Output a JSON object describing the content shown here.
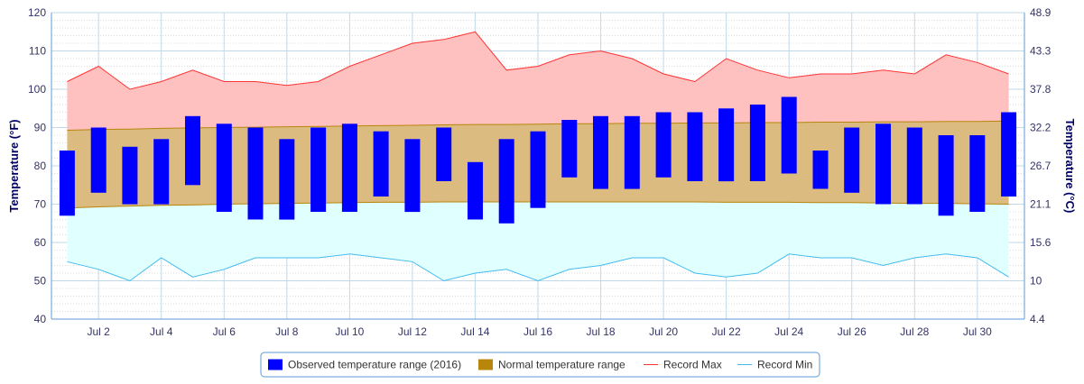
{
  "chart_data": {
    "type": "bar",
    "title": "",
    "ylabel": "Temperature (°F)",
    "y2label": "Temperature (°C)",
    "ylim": [
      40,
      120
    ],
    "yticks": [
      40,
      50,
      60,
      70,
      80,
      90,
      100,
      110,
      120
    ],
    "y2ticks": [
      "4.4",
      "10",
      "15.6",
      "21.1",
      "26.7",
      "32.2",
      "37.8",
      "43.3",
      "48.9"
    ],
    "days": [
      1,
      2,
      3,
      4,
      5,
      6,
      7,
      8,
      9,
      10,
      11,
      12,
      13,
      14,
      15,
      16,
      17,
      18,
      19,
      20,
      21,
      22,
      23,
      24,
      25,
      26,
      27,
      28,
      29,
      30,
      31
    ],
    "xtick_labels": [
      {
        "day": 2,
        "label": "Jul 2"
      },
      {
        "day": 4,
        "label": "Jul 4"
      },
      {
        "day": 6,
        "label": "Jul 6"
      },
      {
        "day": 8,
        "label": "Jul 8"
      },
      {
        "day": 10,
        "label": "Jul 10"
      },
      {
        "day": 12,
        "label": "Jul 12"
      },
      {
        "day": 14,
        "label": "Jul 14"
      },
      {
        "day": 16,
        "label": "Jul 16"
      },
      {
        "day": 18,
        "label": "Jul 18"
      },
      {
        "day": 20,
        "label": "Jul 20"
      },
      {
        "day": 22,
        "label": "Jul 22"
      },
      {
        "day": 24,
        "label": "Jul 24"
      },
      {
        "day": 26,
        "label": "Jul 26"
      },
      {
        "day": 28,
        "label": "Jul 28"
      },
      {
        "day": 30,
        "label": "Jul 30"
      }
    ],
    "series": [
      {
        "name": "Observed temperature range (2016)",
        "kind": "columnrange",
        "color": "#0000ff",
        "low": [
          67,
          73,
          70,
          70,
          75,
          68,
          66,
          66,
          68,
          68,
          72,
          68,
          76,
          66,
          65,
          69,
          77,
          74,
          74,
          77,
          76,
          76,
          76,
          78,
          74,
          73,
          70,
          70,
          67,
          68,
          72
        ],
        "high": [
          84,
          90,
          85,
          87,
          93,
          91,
          90,
          87,
          90,
          91,
          89,
          87,
          90,
          81,
          87,
          89,
          92,
          93,
          93,
          94,
          94,
          95,
          96,
          98,
          84,
          90,
          91,
          90,
          88,
          88,
          94
        ]
      },
      {
        "name": "Normal temperature range",
        "kind": "arearange",
        "color": "#b8860b",
        "fill": "#dbbb7f",
        "low": [
          69,
          69.3,
          69.5,
          69.7,
          69.8,
          70,
          70.1,
          70.2,
          70.3,
          70.4,
          70.5,
          70.5,
          70.6,
          70.6,
          70.6,
          70.6,
          70.6,
          70.6,
          70.6,
          70.6,
          70.6,
          70.5,
          70.5,
          70.5,
          70.4,
          70.4,
          70.3,
          70.2,
          70.2,
          70.1,
          70
        ],
        "high": [
          89.3,
          89.5,
          89.6,
          89.8,
          89.9,
          90,
          90.1,
          90.2,
          90.3,
          90.4,
          90.5,
          90.6,
          90.7,
          90.8,
          90.8,
          90.9,
          91,
          91,
          91.1,
          91.1,
          91.2,
          91.2,
          91.3,
          91.3,
          91.4,
          91.4,
          91.5,
          91.5,
          91.6,
          91.6,
          91.7
        ]
      },
      {
        "name": "Record Max",
        "kind": "line",
        "color": "#ff3333",
        "fill": "#ffc0c0",
        "values": [
          102,
          106,
          100,
          102,
          105,
          102,
          102,
          101,
          102,
          106,
          109,
          112,
          113,
          115,
          105,
          106,
          109,
          110,
          108,
          104,
          102,
          108,
          105,
          103,
          104,
          104,
          105,
          104,
          109,
          107,
          104
        ]
      },
      {
        "name": "Record Min",
        "kind": "line",
        "color": "#44bbee",
        "fill": "#e0ffff",
        "values": [
          55,
          53,
          50,
          56,
          51,
          53,
          56,
          56,
          56,
          57,
          56,
          55,
          50,
          52,
          53,
          50,
          53,
          54,
          56,
          56,
          52,
          51,
          52,
          57,
          56,
          56,
          54,
          56,
          57,
          56,
          51
        ]
      }
    ],
    "legend": {
      "placement": "bottom-center",
      "items": [
        {
          "label": "Observed temperature range (2016)",
          "color": "#0000ff",
          "symbol": "square"
        },
        {
          "label": "Normal temperature range",
          "color": "#b8860b",
          "symbol": "square"
        },
        {
          "label": "Record Max",
          "color": "#ff3333",
          "symbol": "line"
        },
        {
          "label": "Record Min",
          "color": "#44bbee",
          "symbol": "line"
        }
      ]
    },
    "grid": true
  }
}
